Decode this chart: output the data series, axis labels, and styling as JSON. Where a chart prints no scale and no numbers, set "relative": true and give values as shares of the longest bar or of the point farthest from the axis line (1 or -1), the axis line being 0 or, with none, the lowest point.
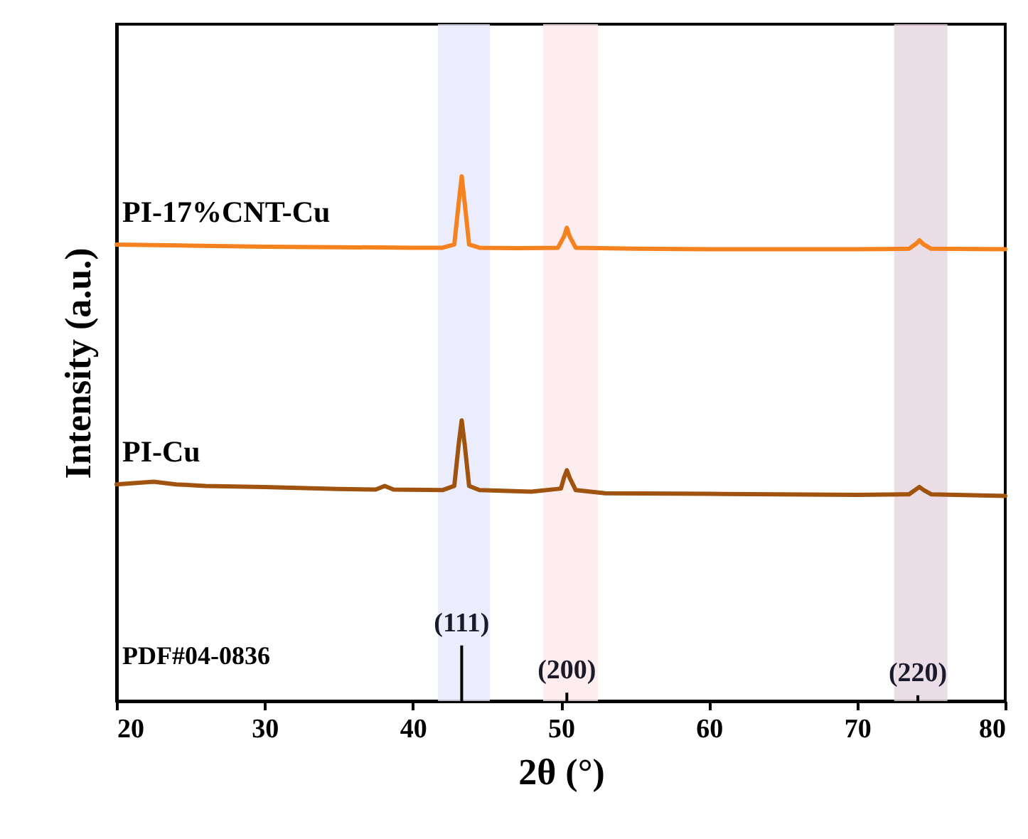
{
  "chart_data": {
    "type": "line",
    "xlabel": "2θ (°)",
    "ylabel": "Intensity (a.u.)",
    "relative": true,
    "xlim": [
      20,
      80
    ],
    "xticks": [
      20,
      30,
      40,
      50,
      60,
      70,
      80
    ],
    "grid": false,
    "marker": "none",
    "line_style": "solid",
    "series": [
      {
        "name": "PI-17%CNT-Cu",
        "color": "#f5821f",
        "x": [
          20,
          25,
          30,
          35,
          40,
          42,
          42.8,
          43.1,
          43.3,
          43.5,
          43.8,
          44.5,
          47,
          49.8,
          50.2,
          50.4,
          50.6,
          51,
          55,
          60,
          65,
          70,
          73.5,
          74.0,
          74.2,
          74.5,
          75,
          80
        ],
        "values": [
          0.87,
          0.868,
          0.866,
          0.865,
          0.864,
          0.864,
          0.87,
          0.95,
          1.0,
          0.95,
          0.87,
          0.864,
          0.863,
          0.864,
          0.885,
          0.902,
          0.885,
          0.864,
          0.862,
          0.861,
          0.861,
          0.861,
          0.862,
          0.872,
          0.878,
          0.87,
          0.862,
          0.861
        ]
      },
      {
        "name": "PI-Cu",
        "color": "#a0520f",
        "x": [
          20,
          21.5,
          22.5,
          24,
          26,
          30,
          35,
          37.5,
          38.1,
          38.7,
          42,
          42.8,
          43.1,
          43.3,
          43.5,
          43.8,
          44.5,
          48,
          50,
          50.2,
          50.4,
          50.6,
          51,
          53,
          60,
          70,
          73.5,
          74.0,
          74.2,
          74.5,
          75,
          80
        ],
        "values": [
          0.413,
          0.416,
          0.418,
          0.413,
          0.41,
          0.408,
          0.404,
          0.403,
          0.41,
          0.403,
          0.402,
          0.41,
          0.49,
          0.535,
          0.49,
          0.41,
          0.402,
          0.399,
          0.405,
          0.425,
          0.44,
          0.425,
          0.402,
          0.396,
          0.395,
          0.393,
          0.394,
          0.404,
          0.408,
          0.402,
          0.394,
          0.391
        ]
      },
      {
        "type": "bar",
        "color": "#000000",
        "x": [
          43.3,
          50.4,
          74.1
        ],
        "values": [
          0.106,
          0.016,
          0.011
        ]
      }
    ],
    "bands": [
      {
        "axis": "x",
        "from": 41.7,
        "to": 45.2,
        "color": "#e6e8fb"
      },
      {
        "axis": "x",
        "from": 48.8,
        "to": 52.5,
        "color": "#fde9ea"
      },
      {
        "axis": "x",
        "from": 72.5,
        "to": 76.1,
        "color": "#e5d5de"
      }
    ],
    "annotations": [
      "PDF#04-0836",
      {
        "text": "(111)",
        "x": 43.3,
        "y": 0.106
      },
      {
        "text": "(200)",
        "x": 50.4,
        "y": 0.016
      },
      {
        "text": "(220)",
        "x": 74.1,
        "y": 0.011
      }
    ]
  }
}
